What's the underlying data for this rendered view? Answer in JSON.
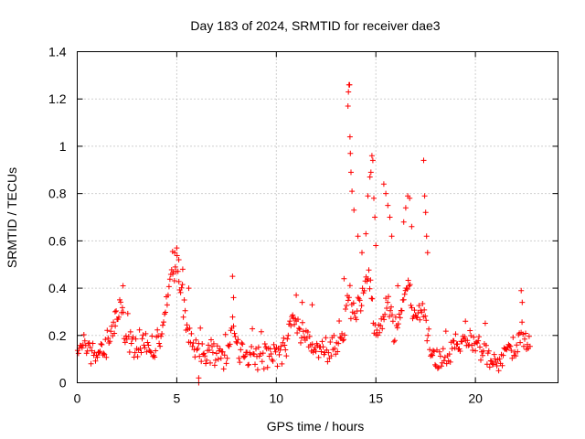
{
  "chart_data": {
    "type": "scatter",
    "title": "Day 183 of 2024, SRMTID for receiver dae3",
    "xlabel": "GPS time / hours",
    "ylabel": "SRMTID / TECUs",
    "xlim": [
      0,
      24.15
    ],
    "ylim": [
      0,
      1.4
    ],
    "xticks": [
      0,
      5,
      10,
      15,
      20
    ],
    "xtick_labels": [
      "0",
      "5",
      "10",
      "15",
      "20"
    ],
    "yticks": [
      0,
      0.2,
      0.4,
      0.6,
      0.8,
      1.0,
      1.2,
      1.4
    ],
    "ytick_labels": [
      "0",
      "0.2",
      "0.4",
      "0.6",
      "0.8",
      "1",
      "1.2",
      "1.4"
    ],
    "grid": true,
    "marker": "+",
    "color": "#ff0000",
    "profile": [
      [
        0.0,
        0.15
      ],
      [
        0.3,
        0.19
      ],
      [
        0.5,
        0.12
      ],
      [
        1.0,
        0.12
      ],
      [
        1.5,
        0.14
      ],
      [
        1.8,
        0.22
      ],
      [
        2.0,
        0.26
      ],
      [
        2.2,
        0.33
      ],
      [
        2.4,
        0.18
      ],
      [
        3.0,
        0.16
      ],
      [
        3.5,
        0.17
      ],
      [
        4.0,
        0.16
      ],
      [
        4.3,
        0.22
      ],
      [
        4.6,
        0.4
      ],
      [
        4.8,
        0.46
      ],
      [
        5.0,
        0.5
      ],
      [
        5.2,
        0.4
      ],
      [
        5.5,
        0.22
      ],
      [
        5.9,
        0.15
      ],
      [
        6.3,
        0.12
      ],
      [
        7.0,
        0.11
      ],
      [
        7.5,
        0.12
      ],
      [
        7.8,
        0.22
      ],
      [
        8.2,
        0.12
      ],
      [
        9.0,
        0.1
      ],
      [
        9.5,
        0.12
      ],
      [
        10.0,
        0.11
      ],
      [
        10.5,
        0.16
      ],
      [
        10.8,
        0.27
      ],
      [
        11.0,
        0.24
      ],
      [
        11.4,
        0.2
      ],
      [
        11.8,
        0.16
      ],
      [
        12.3,
        0.13
      ],
      [
        13.0,
        0.14
      ],
      [
        13.4,
        0.2
      ],
      [
        13.6,
        0.4
      ],
      [
        13.8,
        0.3
      ],
      [
        14.0,
        0.3
      ],
      [
        14.4,
        0.4
      ],
      [
        14.7,
        0.45
      ],
      [
        14.9,
        0.25
      ],
      [
        15.3,
        0.22
      ],
      [
        15.6,
        0.35
      ],
      [
        15.9,
        0.22
      ],
      [
        16.3,
        0.3
      ],
      [
        16.6,
        0.45
      ],
      [
        16.9,
        0.25
      ],
      [
        17.3,
        0.3
      ],
      [
        17.5,
        0.25
      ],
      [
        17.8,
        0.12
      ],
      [
        18.2,
        0.1
      ],
      [
        19.0,
        0.15
      ],
      [
        19.5,
        0.18
      ],
      [
        19.9,
        0.17
      ],
      [
        20.5,
        0.12
      ],
      [
        21.0,
        0.1
      ],
      [
        21.5,
        0.12
      ],
      [
        22.0,
        0.14
      ],
      [
        22.3,
        0.22
      ],
      [
        22.7,
        0.16
      ]
    ],
    "series": [
      {
        "name": "SRMTID",
        "x": [
          1.9,
          2.3,
          4.8,
          4.9,
          5.0,
          5.1,
          5.3,
          5.6,
          6.1,
          6.1,
          7.8,
          7.85,
          11.0,
          11.3,
          11.8,
          13.4,
          13.6,
          13.62,
          13.65,
          13.68,
          13.7,
          13.72,
          13.75,
          13.8,
          13.9,
          14.1,
          14.3,
          14.5,
          14.6,
          14.7,
          14.75,
          14.8,
          14.85,
          14.9,
          14.95,
          15.0,
          15.4,
          15.5,
          15.6,
          15.7,
          15.8,
          16.1,
          16.4,
          16.5,
          16.6,
          16.7,
          16.8,
          17.4,
          17.45,
          17.5,
          17.55,
          17.6,
          19.5,
          22.3,
          22.35
        ],
        "y": [
          0.3,
          0.41,
          0.46,
          0.55,
          0.57,
          0.52,
          0.48,
          0.4,
          0.02,
          0.0,
          0.45,
          0.36,
          0.37,
          0.34,
          0.33,
          0.44,
          1.17,
          1.23,
          1.26,
          1.26,
          1.04,
          0.97,
          0.89,
          0.81,
          0.73,
          0.62,
          0.55,
          0.63,
          0.79,
          0.87,
          0.89,
          0.96,
          0.94,
          0.78,
          0.7,
          0.58,
          0.84,
          0.8,
          0.75,
          0.7,
          0.62,
          0.41,
          0.68,
          0.74,
          0.79,
          0.78,
          0.66,
          0.94,
          0.79,
          0.72,
          0.62,
          0.55,
          0.26,
          0.39,
          0.34
        ]
      }
    ]
  }
}
